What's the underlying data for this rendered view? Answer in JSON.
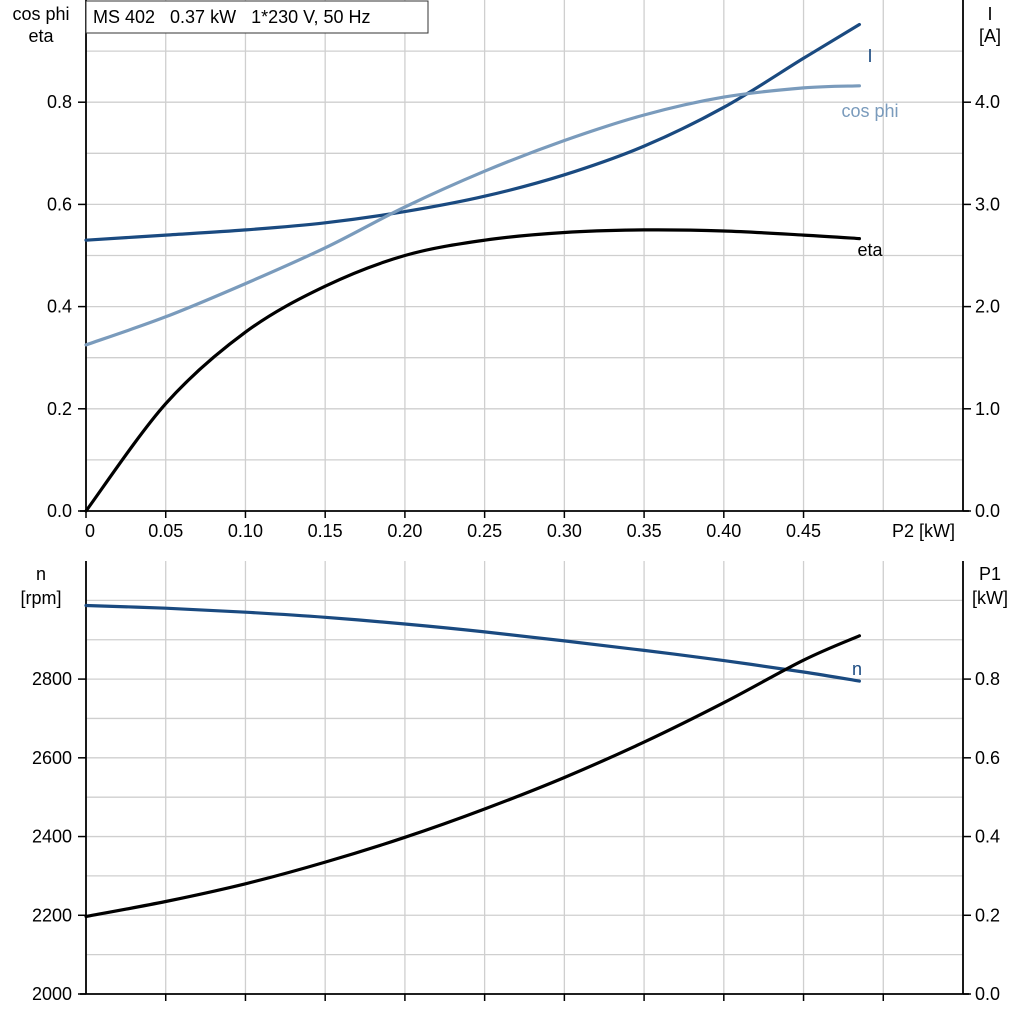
{
  "chart_data": [
    {
      "type": "line",
      "title": "MS 402   0.37 kW   1*230 V, 50 Hz",
      "xlabel": "P2 [kW]",
      "xlim": [
        0,
        0.55
      ],
      "x_ticks": [
        "0",
        "0.05",
        "0.10",
        "0.15",
        "0.20",
        "0.25",
        "0.30",
        "0.35",
        "0.40",
        "0.45"
      ],
      "ylabel_left": [
        "cos phi",
        "eta"
      ],
      "ylim_left": [
        0,
        1.0
      ],
      "y_ticks_left": [
        "0.0",
        "0.2",
        "0.4",
        "0.6",
        "0.8"
      ],
      "ylabel_right": [
        "I",
        "[A]"
      ],
      "ylim_right": [
        0,
        5.0
      ],
      "y_ticks_right": [
        "0.0",
        "1.0",
        "2.0",
        "3.0",
        "4.0"
      ],
      "grid": true,
      "series": [
        {
          "name": "I",
          "axis": "right",
          "color": "#1a4a80",
          "x": [
            0,
            0.05,
            0.1,
            0.15,
            0.2,
            0.25,
            0.3,
            0.35,
            0.4,
            0.45,
            0.485
          ],
          "y": [
            2.65,
            2.7,
            2.75,
            2.82,
            2.93,
            3.08,
            3.29,
            3.57,
            3.95,
            4.43,
            4.76
          ]
        },
        {
          "name": "cos phi",
          "axis": "left",
          "color": "#7a9bbc",
          "x": [
            0,
            0.05,
            0.1,
            0.15,
            0.2,
            0.25,
            0.3,
            0.35,
            0.4,
            0.45,
            0.485
          ],
          "y": [
            0.325,
            0.38,
            0.445,
            0.515,
            0.595,
            0.665,
            0.725,
            0.775,
            0.81,
            0.828,
            0.832
          ]
        },
        {
          "name": "eta",
          "axis": "left",
          "color": "#000000",
          "x": [
            0,
            0.05,
            0.1,
            0.15,
            0.2,
            0.25,
            0.3,
            0.35,
            0.4,
            0.45,
            0.485
          ],
          "y": [
            0.0,
            0.21,
            0.35,
            0.44,
            0.5,
            0.53,
            0.545,
            0.55,
            0.548,
            0.54,
            0.533
          ]
        }
      ]
    },
    {
      "type": "line",
      "xlim": [
        0,
        0.55
      ],
      "ylabel_left": [
        "n",
        "[rpm]"
      ],
      "ylim_left": [
        2000,
        3100
      ],
      "y_ticks_left": [
        "2000",
        "2200",
        "2400",
        "2600",
        "2800"
      ],
      "ylabel_right": [
        "P1",
        "[kW]"
      ],
      "ylim_right": [
        0,
        1.1
      ],
      "y_ticks_right": [
        "0.0",
        "0.2",
        "0.4",
        "0.6",
        "0.8"
      ],
      "grid": true,
      "series": [
        {
          "name": "n",
          "axis": "left",
          "color": "#1a4a80",
          "x": [
            0,
            0.05,
            0.1,
            0.15,
            0.2,
            0.25,
            0.3,
            0.35,
            0.4,
            0.45,
            0.485
          ],
          "y": [
            2987,
            2980,
            2970,
            2957,
            2940,
            2920,
            2897,
            2873,
            2847,
            2818,
            2795
          ]
        },
        {
          "axis": "right",
          "color": "#000000",
          "x": [
            0,
            0.05,
            0.1,
            0.15,
            0.2,
            0.25,
            0.3,
            0.35,
            0.4,
            0.45,
            0.485
          ],
          "y": [
            0.197,
            0.235,
            0.28,
            0.335,
            0.398,
            0.47,
            0.55,
            0.64,
            0.74,
            0.848,
            0.91
          ]
        }
      ]
    }
  ]
}
